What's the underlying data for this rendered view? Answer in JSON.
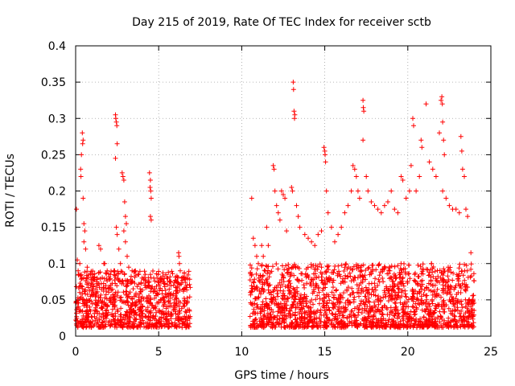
{
  "chart_data": {
    "type": "scatter",
    "title": "Day 215 of 2019, Rate Of TEC Index for receiver sctb",
    "xlabel": "GPS time / hours",
    "ylabel": "ROTI / TECUs",
    "xlim": [
      0,
      25
    ],
    "ylim": [
      0,
      0.4
    ],
    "xticks": [
      "0",
      "5",
      "10",
      "15",
      "20",
      "25"
    ],
    "yticks": [
      "0",
      "0.05",
      "0.1",
      "0.15",
      "0.2",
      "0.25",
      "0.3",
      "0.35",
      "0.4"
    ],
    "grid": true,
    "marker": "+",
    "color": "#ff0000",
    "series": [
      {
        "points": [
          [
            0.05,
            0.175
          ],
          [
            0.1,
            0.105
          ],
          [
            0.15,
            0.09
          ],
          [
            0.2,
            0.085
          ],
          [
            0.25,
            0.1
          ],
          [
            0.3,
            0.23
          ],
          [
            0.32,
            0.22
          ],
          [
            0.35,
            0.25
          ],
          [
            0.4,
            0.28
          ],
          [
            0.42,
            0.265
          ],
          [
            0.45,
            0.27
          ],
          [
            0.45,
            0.19
          ],
          [
            0.5,
            0.155
          ],
          [
            0.55,
            0.145
          ],
          [
            0.6,
            0.12
          ],
          [
            0.5,
            0.13
          ],
          [
            0.7,
            0.095
          ],
          [
            0.9,
            0.085
          ],
          [
            1.1,
            0.08
          ],
          [
            1.3,
            0.08
          ],
          [
            1.4,
            0.125
          ],
          [
            1.5,
            0.12
          ],
          [
            1.7,
            0.1
          ],
          [
            1.75,
            0.1
          ],
          [
            1.9,
            0.09
          ],
          [
            2.1,
            0.085
          ],
          [
            2.3,
            0.09
          ],
          [
            2.35,
            0.09
          ],
          [
            2.4,
            0.305
          ],
          [
            2.42,
            0.3
          ],
          [
            2.45,
            0.295
          ],
          [
            2.48,
            0.29
          ],
          [
            2.5,
            0.265
          ],
          [
            2.4,
            0.245
          ],
          [
            2.45,
            0.15
          ],
          [
            2.5,
            0.14
          ],
          [
            2.6,
            0.12
          ],
          [
            2.7,
            0.1
          ],
          [
            2.8,
            0.225
          ],
          [
            2.85,
            0.22
          ],
          [
            2.9,
            0.215
          ],
          [
            2.95,
            0.185
          ],
          [
            3.0,
            0.165
          ],
          [
            3.05,
            0.155
          ],
          [
            2.9,
            0.145
          ],
          [
            3.0,
            0.13
          ],
          [
            3.1,
            0.11
          ],
          [
            3.2,
            0.095
          ],
          [
            3.4,
            0.09
          ],
          [
            3.6,
            0.09
          ],
          [
            3.8,
            0.085
          ],
          [
            4.0,
            0.08
          ],
          [
            4.2,
            0.085
          ],
          [
            4.45,
            0.225
          ],
          [
            4.5,
            0.215
          ],
          [
            4.48,
            0.205
          ],
          [
            4.52,
            0.2
          ],
          [
            4.55,
            0.19
          ],
          [
            4.5,
            0.165
          ],
          [
            4.55,
            0.16
          ],
          [
            4.5,
            0.085
          ],
          [
            4.7,
            0.08
          ],
          [
            4.9,
            0.08
          ],
          [
            5.1,
            0.08
          ],
          [
            5.3,
            0.075
          ],
          [
            5.5,
            0.08
          ],
          [
            5.7,
            0.075
          ],
          [
            5.9,
            0.07
          ],
          [
            6.1,
            0.075
          ],
          [
            6.2,
            0.115
          ],
          [
            6.22,
            0.11
          ],
          [
            6.25,
            0.1
          ],
          [
            6.3,
            0.09
          ],
          [
            6.5,
            0.08
          ],
          [
            6.7,
            0.07
          ],
          [
            10.6,
            0.19
          ],
          [
            10.7,
            0.135
          ],
          [
            10.8,
            0.125
          ],
          [
            10.9,
            0.11
          ],
          [
            11.0,
            0.1
          ],
          [
            11.2,
            0.125
          ],
          [
            11.3,
            0.11
          ],
          [
            11.5,
            0.15
          ],
          [
            11.6,
            0.125
          ],
          [
            11.9,
            0.235
          ],
          [
            11.95,
            0.23
          ],
          [
            12.0,
            0.2
          ],
          [
            12.1,
            0.18
          ],
          [
            12.2,
            0.17
          ],
          [
            12.3,
            0.16
          ],
          [
            12.4,
            0.2
          ],
          [
            12.5,
            0.195
          ],
          [
            12.6,
            0.19
          ],
          [
            12.7,
            0.145
          ],
          [
            13.1,
            0.35
          ],
          [
            13.12,
            0.34
          ],
          [
            13.15,
            0.31
          ],
          [
            13.18,
            0.3
          ],
          [
            13.2,
            0.305
          ],
          [
            13.0,
            0.205
          ],
          [
            13.05,
            0.2
          ],
          [
            13.3,
            0.18
          ],
          [
            13.4,
            0.165
          ],
          [
            13.5,
            0.15
          ],
          [
            13.8,
            0.14
          ],
          [
            14.0,
            0.135
          ],
          [
            14.2,
            0.13
          ],
          [
            14.4,
            0.125
          ],
          [
            14.6,
            0.14
          ],
          [
            14.8,
            0.145
          ],
          [
            14.95,
            0.26
          ],
          [
            15.0,
            0.255
          ],
          [
            15.02,
            0.25
          ],
          [
            15.05,
            0.24
          ],
          [
            15.1,
            0.2
          ],
          [
            15.2,
            0.17
          ],
          [
            15.4,
            0.15
          ],
          [
            15.6,
            0.13
          ],
          [
            15.8,
            0.14
          ],
          [
            16.0,
            0.15
          ],
          [
            16.2,
            0.17
          ],
          [
            16.4,
            0.18
          ],
          [
            16.6,
            0.2
          ],
          [
            16.7,
            0.235
          ],
          [
            16.8,
            0.23
          ],
          [
            16.9,
            0.22
          ],
          [
            17.0,
            0.2
          ],
          [
            17.1,
            0.19
          ],
          [
            17.3,
            0.325
          ],
          [
            17.32,
            0.315
          ],
          [
            17.35,
            0.31
          ],
          [
            17.3,
            0.27
          ],
          [
            17.5,
            0.22
          ],
          [
            17.6,
            0.2
          ],
          [
            17.8,
            0.185
          ],
          [
            18.0,
            0.18
          ],
          [
            18.2,
            0.175
          ],
          [
            18.4,
            0.17
          ],
          [
            18.6,
            0.18
          ],
          [
            18.8,
            0.185
          ],
          [
            19.0,
            0.2
          ],
          [
            19.2,
            0.175
          ],
          [
            19.4,
            0.17
          ],
          [
            19.6,
            0.22
          ],
          [
            19.7,
            0.215
          ],
          [
            19.9,
            0.19
          ],
          [
            20.1,
            0.2
          ],
          [
            20.2,
            0.235
          ],
          [
            20.3,
            0.3
          ],
          [
            20.35,
            0.29
          ],
          [
            20.5,
            0.2
          ],
          [
            20.7,
            0.22
          ],
          [
            20.8,
            0.27
          ],
          [
            20.85,
            0.26
          ],
          [
            21.1,
            0.32
          ],
          [
            21.3,
            0.24
          ],
          [
            21.5,
            0.23
          ],
          [
            21.7,
            0.22
          ],
          [
            21.9,
            0.28
          ],
          [
            22.0,
            0.325
          ],
          [
            22.05,
            0.33
          ],
          [
            22.08,
            0.32
          ],
          [
            22.1,
            0.295
          ],
          [
            22.15,
            0.27
          ],
          [
            22.2,
            0.25
          ],
          [
            22.1,
            0.2
          ],
          [
            22.3,
            0.19
          ],
          [
            22.5,
            0.18
          ],
          [
            22.7,
            0.175
          ],
          [
            22.9,
            0.175
          ],
          [
            23.1,
            0.17
          ],
          [
            23.2,
            0.275
          ],
          [
            23.25,
            0.255
          ],
          [
            23.3,
            0.23
          ],
          [
            23.4,
            0.22
          ],
          [
            23.5,
            0.175
          ],
          [
            23.6,
            0.165
          ],
          [
            23.8,
            0.115
          ]
        ]
      }
    ],
    "dense_band_segments": [
      {
        "x": [
          0.0,
          6.9
        ],
        "y": [
          0.012,
          0.09
        ]
      },
      {
        "x": [
          10.5,
          24.0
        ],
        "y": [
          0.012,
          0.1
        ]
      }
    ]
  }
}
